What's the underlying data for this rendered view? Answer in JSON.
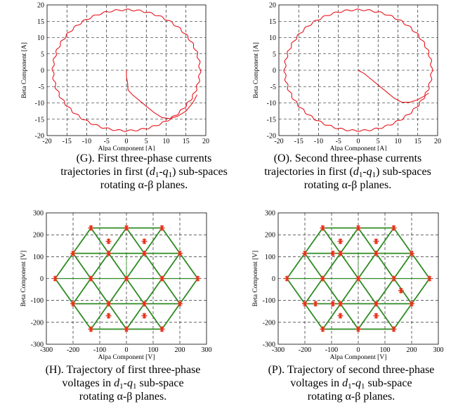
{
  "chart_data": [
    {
      "id": "G",
      "type": "line",
      "xlabel": "Alpa Component [A]",
      "ylabel": "Beta Component [A]",
      "xlim": [
        -20,
        20
      ],
      "ylim": [
        -20,
        20
      ],
      "xticks": [
        -20,
        -15,
        -10,
        -5,
        0,
        5,
        10,
        15,
        20
      ],
      "yticks": [
        -20,
        -15,
        -10,
        -5,
        0,
        5,
        10,
        15,
        20
      ],
      "grid": true,
      "series": [
        {
          "color": "#e8141c",
          "kind": "circle",
          "center": [
            0,
            0
          ],
          "radius": 18.5
        },
        {
          "color": "#e8141c",
          "kind": "path",
          "points": [
            [
              0,
              0
            ],
            [
              0,
              -2
            ],
            [
              0.3,
              -4
            ],
            [
              0.4,
              -6
            ],
            [
              1.5,
              -7.5
            ],
            [
              3,
              -9
            ],
            [
              5,
              -11
            ],
            [
              7,
              -13
            ],
            [
              9,
              -14.5
            ],
            [
              11,
              -14.8
            ],
            [
              13,
              -14
            ],
            [
              15,
              -12.5
            ],
            [
              16.7,
              -10
            ],
            [
              17.8,
              -7.5
            ]
          ]
        }
      ],
      "caption": {
        "prefix": "(G). First three-phase currents",
        "line2_pre": "trajectories in first (",
        "line2_post": ") sub-spaces",
        "line3": "rotating  α-β planes."
      }
    },
    {
      "id": "O",
      "type": "line",
      "xlabel": "Alpa Component [A]",
      "ylabel": "Beta Component [A]",
      "xlim": [
        -20,
        20
      ],
      "ylim": [
        -20,
        20
      ],
      "xticks": [
        -20,
        -15,
        -10,
        -5,
        0,
        5,
        10,
        15,
        20
      ],
      "yticks": [
        -20,
        -15,
        -10,
        -5,
        0,
        5,
        10,
        15,
        20
      ],
      "grid": true,
      "series": [
        {
          "color": "#e8141c",
          "kind": "circle",
          "center": [
            0,
            0
          ],
          "radius": 18.5
        },
        {
          "color": "#e8141c",
          "kind": "path",
          "points": [
            [
              0,
              0
            ],
            [
              1.5,
              -1
            ],
            [
              3,
              -2.5
            ],
            [
              5,
              -4.5
            ],
            [
              7,
              -6.5
            ],
            [
              9,
              -8.5
            ],
            [
              11,
              -9.8
            ],
            [
              13,
              -9.8
            ],
            [
              15,
              -9
            ],
            [
              16.5,
              -8
            ],
            [
              17.8,
              -7
            ]
          ]
        }
      ],
      "caption": {
        "prefix": "(O). Second three-phase currents",
        "line2_pre": "trajectories in first (",
        "line2_post": ") sub-spaces",
        "line3": "rotating α-β planes."
      }
    },
    {
      "id": "H",
      "type": "scatter",
      "xlabel": "Alpa Component [V]",
      "ylabel": "Beta Component [V]",
      "xlim": [
        -300,
        300
      ],
      "ylim": [
        -300,
        300
      ],
      "xticks": [
        -300,
        -200,
        -100,
        0,
        100,
        200,
        300
      ],
      "yticks": [
        -300,
        -200,
        -100,
        0,
        100,
        200,
        300
      ],
      "grid": true,
      "line_color": "#2e8b22",
      "marker_color": "#e8321c",
      "extra_points": [
        [
          -67,
          170
        ],
        [
          67,
          170
        ],
        [
          67,
          -170
        ],
        [
          -67,
          -170
        ]
      ],
      "caption": {
        "prefix": "(H). Trajectory of first three-phase",
        "line2_pre": "voltages in ",
        "line2_post": " sub-space",
        "line3": "rotating α-β planes."
      }
    },
    {
      "id": "P",
      "type": "scatter",
      "xlabel": "Alpa Component [V]",
      "ylabel": "Beta Component [V]",
      "xlim": [
        -300,
        300
      ],
      "ylim": [
        -300,
        300
      ],
      "xticks": [
        -300,
        -200,
        -100,
        0,
        100,
        200,
        300
      ],
      "yticks": [
        -300,
        -200,
        -100,
        0,
        100,
        200,
        300
      ],
      "grid": true,
      "line_color": "#2e8b22",
      "marker_color": "#e8321c",
      "extra_points": [
        [
          -67,
          170
        ],
        [
          67,
          170
        ],
        [
          67,
          -170
        ],
        [
          -67,
          -170
        ],
        [
          160,
          -55
        ],
        [
          -160,
          -115
        ],
        [
          -95,
          -115
        ],
        [
          -95,
          115
        ]
      ],
      "caption": {
        "prefix": "(P). Trajectory of second three-phase",
        "line2_pre": "voltages in ",
        "line2_post": " sub-space",
        "line3": "rotating α-β planes."
      }
    }
  ]
}
